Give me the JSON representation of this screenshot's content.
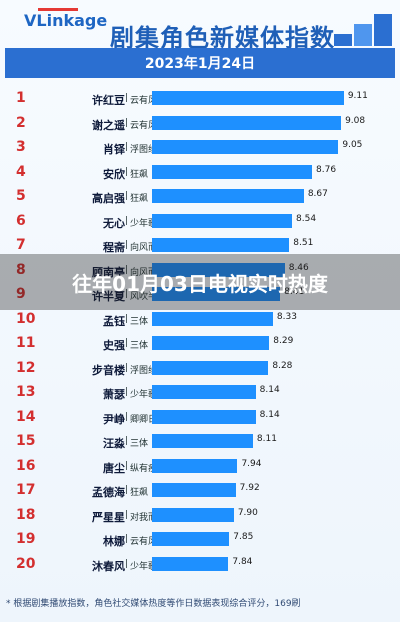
{
  "logo": {
    "text": "VLinkage"
  },
  "header": {
    "title": "剧集角色新媒体指数"
  },
  "date": "2023年1月24日",
  "overlay": {
    "text": "往年01月03日电视实时热度"
  },
  "footnote": "* 根据剧集播放指数，角色社交媒体热度等作日数据表现综合评分，169刷",
  "chart_data": {
    "type": "bar",
    "title": "剧集角色新媒体指数",
    "subtitle": "2023年1月24日",
    "xlabel": "",
    "ylabel": "",
    "orientation": "horizontal",
    "ranks": [
      1,
      2,
      3,
      4,
      5,
      6,
      7,
      8,
      9,
      10,
      11,
      12,
      13,
      14,
      15,
      16,
      17,
      18,
      19,
      20
    ],
    "categories": [
      "许红豆",
      "谢之遥",
      "肖铎",
      "安欣",
      "高启强",
      "无心",
      "程斋",
      "顾南亭",
      "许半夏",
      "孟钰",
      "史强",
      "步音楼",
      "萧瑟",
      "尹峥",
      "汪淼",
      "唐尘",
      "孟德海",
      "严星星",
      "林娜",
      "沐春风"
    ],
    "subtitles": [
      "云有风的地方",
      "云有风的地方",
      "浮图缘",
      "狂飙",
      "狂飙",
      "少年歌行",
      "向风而行",
      "向风而行",
      "风吹半夏",
      "三体",
      "三体",
      "浮图缘",
      "少年歌行",
      "卿卿日常",
      "三体",
      "纵有疾风起",
      "狂飙",
      "对我而言危险的他",
      "云有风的地方",
      "少年歌行"
    ],
    "values": [
      9.11,
      9.08,
      9.05,
      8.76,
      8.67,
      8.54,
      8.51,
      8.46,
      8.41,
      8.33,
      8.29,
      8.28,
      8.14,
      8.14,
      8.11,
      7.94,
      7.92,
      7.9,
      7.85,
      7.84
    ],
    "color": "#1e90ff",
    "label_color": "#d32f2f",
    "xlim": [
      7.0,
      9.2
    ],
    "value_format": "2dp"
  }
}
